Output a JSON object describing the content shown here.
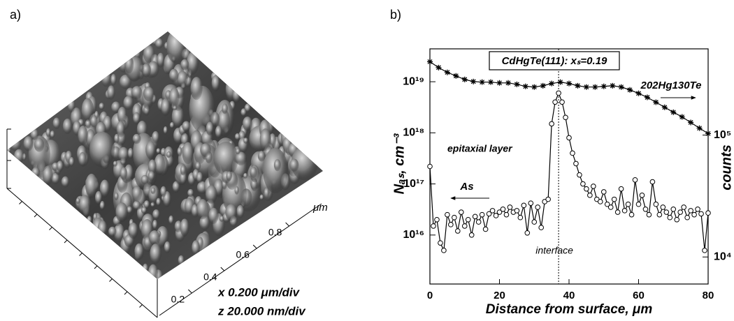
{
  "chart_data": [
    {
      "type": "surface",
      "panel_label": "a)",
      "axis_label": "μm",
      "xlim": [
        0,
        1
      ],
      "xticks": [
        0.2,
        0.4,
        0.6,
        0.8
      ],
      "scale_notes": [
        "x  0.200 μm/div",
        "z  20.000 nm/div"
      ]
    },
    {
      "type": "line",
      "panel_label": "b)",
      "title": "CdHgTe(111): xₛ=0.19",
      "xlabel": "Distance from surface, μm",
      "ylabel": "Nₐₛ, cm⁻³",
      "y2label": "counts",
      "xlim": [
        0,
        80
      ],
      "xticks": [
        0,
        20,
        40,
        60,
        80
      ],
      "yscale": "log",
      "ylim": [
        1100000000000000.0,
        4.4e+19
      ],
      "yticks": [
        {
          "value": 1e+16,
          "label": "10¹⁶"
        },
        {
          "value": 1e+17,
          "label": "10¹⁷"
        },
        {
          "value": 1e+18,
          "label": "10¹⁸"
        },
        {
          "value": 1e+19,
          "label": "10¹⁹"
        }
      ],
      "y2scale": "log",
      "y2lim": [
        6000,
        510000
      ],
      "y2ticks": [
        {
          "value": 10000,
          "label": "10⁴"
        },
        {
          "value": 100000,
          "label": "10⁵"
        }
      ],
      "series": [
        {
          "name": "As",
          "color": "#000000",
          "marker": "circle",
          "x": [
            0,
            1,
            2,
            3,
            4,
            5,
            6,
            7,
            8,
            9,
            10,
            11,
            12,
            13,
            14,
            15,
            16,
            17,
            18,
            19,
            20,
            21,
            22,
            23,
            24,
            25,
            26,
            27,
            28,
            29,
            30,
            31,
            32,
            33,
            34,
            35,
            36,
            37,
            38,
            39,
            40,
            41,
            42,
            43,
            44,
            45,
            46,
            47,
            48,
            49,
            50,
            51,
            52,
            53,
            54,
            55,
            56,
            57,
            58,
            59,
            60,
            61,
            62,
            63,
            64,
            65,
            66,
            67,
            68,
            69,
            70,
            71,
            72,
            73,
            74,
            75,
            76,
            77,
            78,
            79,
            80
          ],
          "values": [
            2.2e+17,
            1.5e+16,
            2e+16,
            7000000000000000.0,
            5000000000000000.0,
            2.5e+16,
            1.6e+16,
            2.2e+16,
            1.2e+16,
            2.8e+16,
            1.5e+16,
            2e+16,
            1e+16,
            2.3e+16,
            1.8e+16,
            2.5e+16,
            1.3e+16,
            2.6e+16,
            3e+16,
            2.4e+16,
            2.8e+16,
            3.2e+16,
            2.5e+16,
            3.5e+16,
            2.8e+16,
            3e+16,
            2.2e+16,
            3.8e+16,
            1.1e+16,
            4.2e+16,
            1.8e+16,
            3.5e+16,
            1.4e+16,
            4.5e+16,
            5e+16,
            1.5e+18,
            4e+18,
            6e+18,
            4e+18,
            2e+18,
            8e+17,
            4e+17,
            2.5e+17,
            1.5e+17,
            1e+17,
            8e+16,
            6e+16,
            9e+16,
            5e+16,
            4.5e+16,
            7e+16,
            4e+16,
            3.5e+16,
            5e+16,
            2.8e+16,
            8e+16,
            3e+16,
            4e+16,
            2.5e+16,
            1.2e+17,
            4e+16,
            6e+16,
            3.2e+16,
            2.5e+16,
            1.1e+17,
            4e+16,
            2.5e+16,
            3.5e+16,
            2.8e+16,
            2.2e+16,
            3.2e+16,
            2e+16,
            2.8e+16,
            3.5e+16,
            2.2e+16,
            3e+16,
            2.5e+16,
            3.2e+16,
            2.6e+16,
            5000000000000000.0,
            2.7e+16
          ]
        },
        {
          "name": "202Hg130Te",
          "color": "#000000",
          "marker": "star",
          "axis": "y2",
          "x": [
            0,
            2.5,
            5,
            7.5,
            10,
            12.5,
            15,
            17.5,
            20,
            22.5,
            25,
            27.5,
            30,
            32.5,
            35,
            37.5,
            40,
            42.5,
            45,
            47.5,
            50,
            52.5,
            55,
            57.5,
            60,
            62.5,
            65,
            67.5,
            70,
            72.5,
            75,
            77.5,
            80
          ],
          "values": [
            400000,
            358000,
            327000,
            306000,
            286000,
            275000,
            272000,
            272000,
            268000,
            268000,
            261000,
            251000,
            248000,
            254000,
            265000,
            272000,
            265000,
            254000,
            248000,
            248000,
            251000,
            254000,
            248000,
            235000,
            220000,
            204000,
            186000,
            169000,
            154000,
            141000,
            127000,
            114000,
            103000
          ]
        }
      ],
      "annotations": [
        {
          "text": "epitaxial layer"
        },
        {
          "text": "interface",
          "x": 37
        }
      ]
    }
  ]
}
